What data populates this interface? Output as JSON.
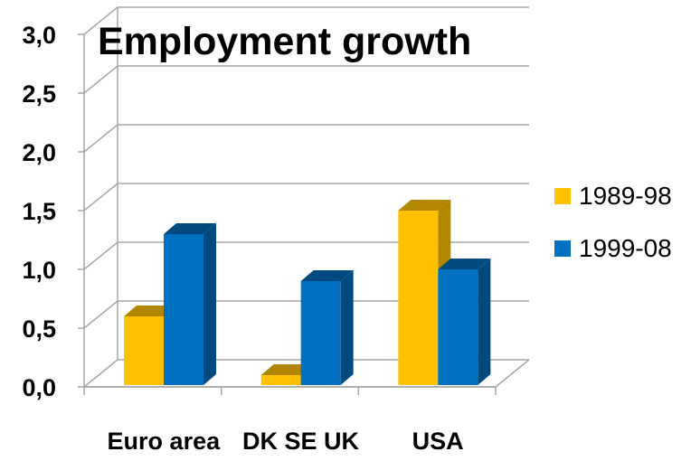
{
  "chart_data": {
    "type": "bar",
    "title": "Employment growth",
    "xlabel": "",
    "ylabel": "",
    "categories": [
      "Euro area",
      "DK SE UK",
      "USA"
    ],
    "y_ticks": [
      "0,0",
      "0,5",
      "1,0",
      "1,5",
      "2,0",
      "2,5",
      "3,0"
    ],
    "ylim": [
      0,
      3.0
    ],
    "grid": true,
    "legend_position": "right",
    "series": [
      {
        "name": "1989-98",
        "values": [
          0.6,
          0.1,
          1.5
        ],
        "color": "#FFC000",
        "side_color": "#B38600"
      },
      {
        "name": "1999-08",
        "values": [
          1.3,
          0.9,
          1.0
        ],
        "color": "#0070C0",
        "side_color": "#004A80"
      }
    ]
  }
}
